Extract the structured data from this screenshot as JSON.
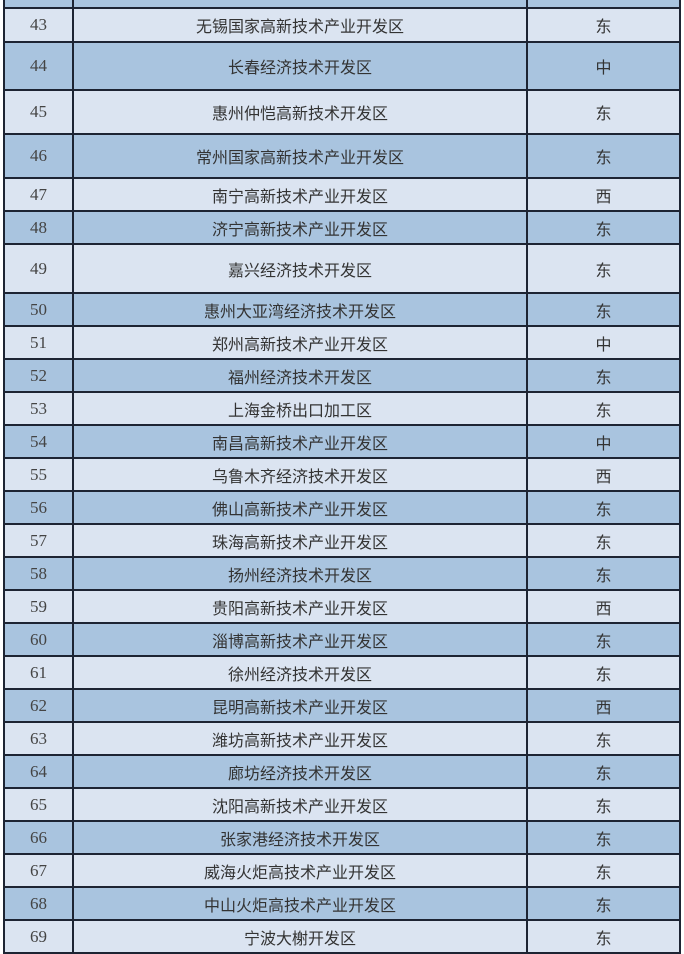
{
  "colors": {
    "light_row": "#dbe4f1",
    "dark_row": "#a9c4df",
    "border": "#1d2433"
  },
  "rows": [
    {
      "no": "",
      "name": "",
      "region": ""
    },
    {
      "no": "43",
      "name": "无锡国家高新技术产业开发区",
      "region": "东"
    },
    {
      "no": "44",
      "name": "长春经济技术开发区",
      "region": "中"
    },
    {
      "no": "45",
      "name": "惠州仲恺高新技术开发区",
      "region": "东"
    },
    {
      "no": "46",
      "name": "常州国家高新技术产业开发区",
      "region": "东"
    },
    {
      "no": "47",
      "name": "南宁高新技术产业开发区",
      "region": "西"
    },
    {
      "no": "48",
      "name": "济宁高新技术产业开发区",
      "region": "东"
    },
    {
      "no": "49",
      "name": "嘉兴经济技术开发区",
      "region": "东"
    },
    {
      "no": "50",
      "name": "惠州大亚湾经济技术开发区",
      "region": "东"
    },
    {
      "no": "51",
      "name": "郑州高新技术产业开发区",
      "region": "中"
    },
    {
      "no": "52",
      "name": "福州经济技术开发区",
      "region": "东"
    },
    {
      "no": "53",
      "name": "上海金桥出口加工区",
      "region": "东"
    },
    {
      "no": "54",
      "name": "南昌高新技术产业开发区",
      "region": "中"
    },
    {
      "no": "55",
      "name": "乌鲁木齐经济技术开发区",
      "region": "西"
    },
    {
      "no": "56",
      "name": "佛山高新技术产业开发区",
      "region": "东"
    },
    {
      "no": "57",
      "name": "珠海高新技术产业开发区",
      "region": "东"
    },
    {
      "no": "58",
      "name": "扬州经济技术开发区",
      "region": "东"
    },
    {
      "no": "59",
      "name": "贵阳高新技术产业开发区",
      "region": "西"
    },
    {
      "no": "60",
      "name": "淄博高新技术产业开发区",
      "region": "东"
    },
    {
      "no": "61",
      "name": "徐州经济技术开发区",
      "region": "东"
    },
    {
      "no": "62",
      "name": "昆明高新技术产业开发区",
      "region": "西"
    },
    {
      "no": "63",
      "name": "潍坊高新技术产业开发区",
      "region": "东"
    },
    {
      "no": "64",
      "name": "廊坊经济技术开发区",
      "region": "东"
    },
    {
      "no": "65",
      "name": "沈阳高新技术产业开发区",
      "region": "东"
    },
    {
      "no": "66",
      "name": "张家港经济技术开发区",
      "region": "东"
    },
    {
      "no": "67",
      "name": "威海火炬高技术产业开发区",
      "region": "东"
    },
    {
      "no": "68",
      "name": "中山火炬高技术产业开发区",
      "region": "东"
    },
    {
      "no": "69",
      "name": "宁波大榭开发区",
      "region": "东"
    }
  ]
}
